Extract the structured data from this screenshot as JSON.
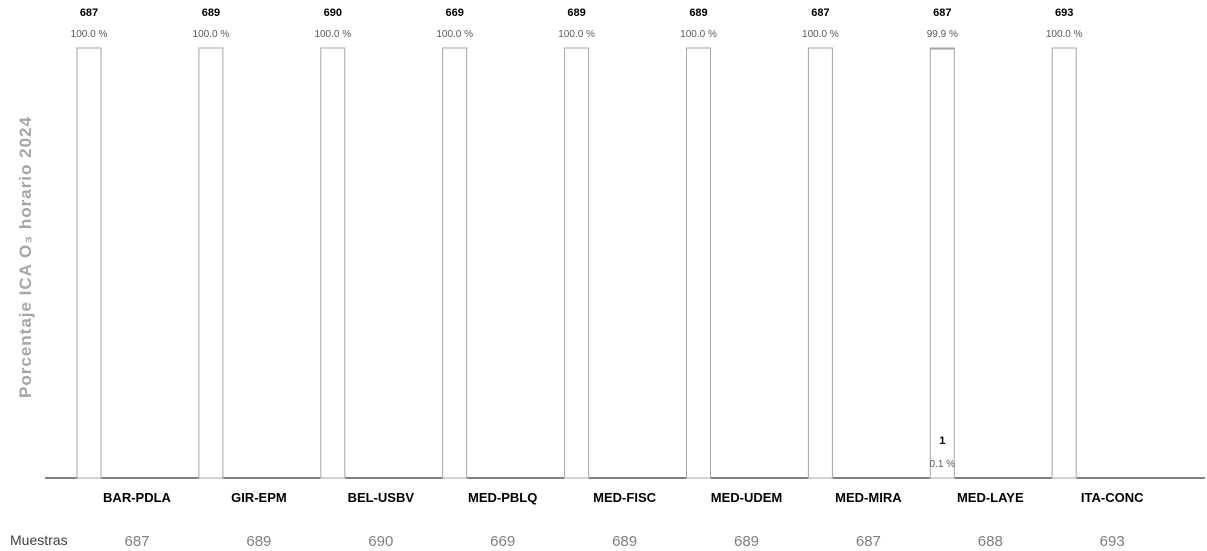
{
  "chart_data": {
    "type": "bar",
    "ylabel": "Porcentaje ICA O₃ horario 2024",
    "categories": [
      "BAR-PDLA",
      "GIR-EPM",
      "BEL-USBV",
      "MED-PBLQ",
      "MED-FISC",
      "MED-UDEM",
      "MED-MIRA",
      "MED-LAYE",
      "ITA-CONC"
    ],
    "series": [
      {
        "percentages": [
          100.0,
          100.0,
          100.0,
          100.0,
          100.0,
          100.0,
          100.0,
          99.9,
          100.0
        ],
        "counts": [
          687,
          689,
          690,
          669,
          689,
          689,
          687,
          687,
          693
        ],
        "count_labels": [
          "687",
          "689",
          "690",
          "669",
          "689",
          "689",
          "687",
          "687",
          "693"
        ],
        "pct_labels": [
          "100.0 %",
          "100.0 %",
          "100.0 %",
          "100.0 %",
          "100.0 %",
          "100.0 %",
          "100.0 %",
          "99.9 %",
          "100.0 %"
        ],
        "color": "#ffffff",
        "edge_color": "#a6a6a6"
      },
      {
        "percentages": [
          0,
          0,
          0,
          0,
          0,
          0,
          0,
          0.1,
          0
        ],
        "counts": [
          0,
          0,
          0,
          0,
          0,
          0,
          0,
          1,
          0
        ],
        "count_labels": [
          "",
          "",
          "",
          "",
          "",
          "",
          "",
          "1",
          ""
        ],
        "pct_labels": [
          "",
          "",
          "",
          "",
          "",
          "",
          "",
          "0.1 %",
          ""
        ],
        "color": "#f2d04a",
        "edge_color": "#a6a6a6"
      }
    ],
    "samples_label": "Muestras",
    "samples": [
      "687",
      "689",
      "690",
      "669",
      "689",
      "689",
      "687",
      "688",
      "693"
    ],
    "ylim": [
      0,
      100
    ],
    "grid": false,
    "legend": "none"
  }
}
